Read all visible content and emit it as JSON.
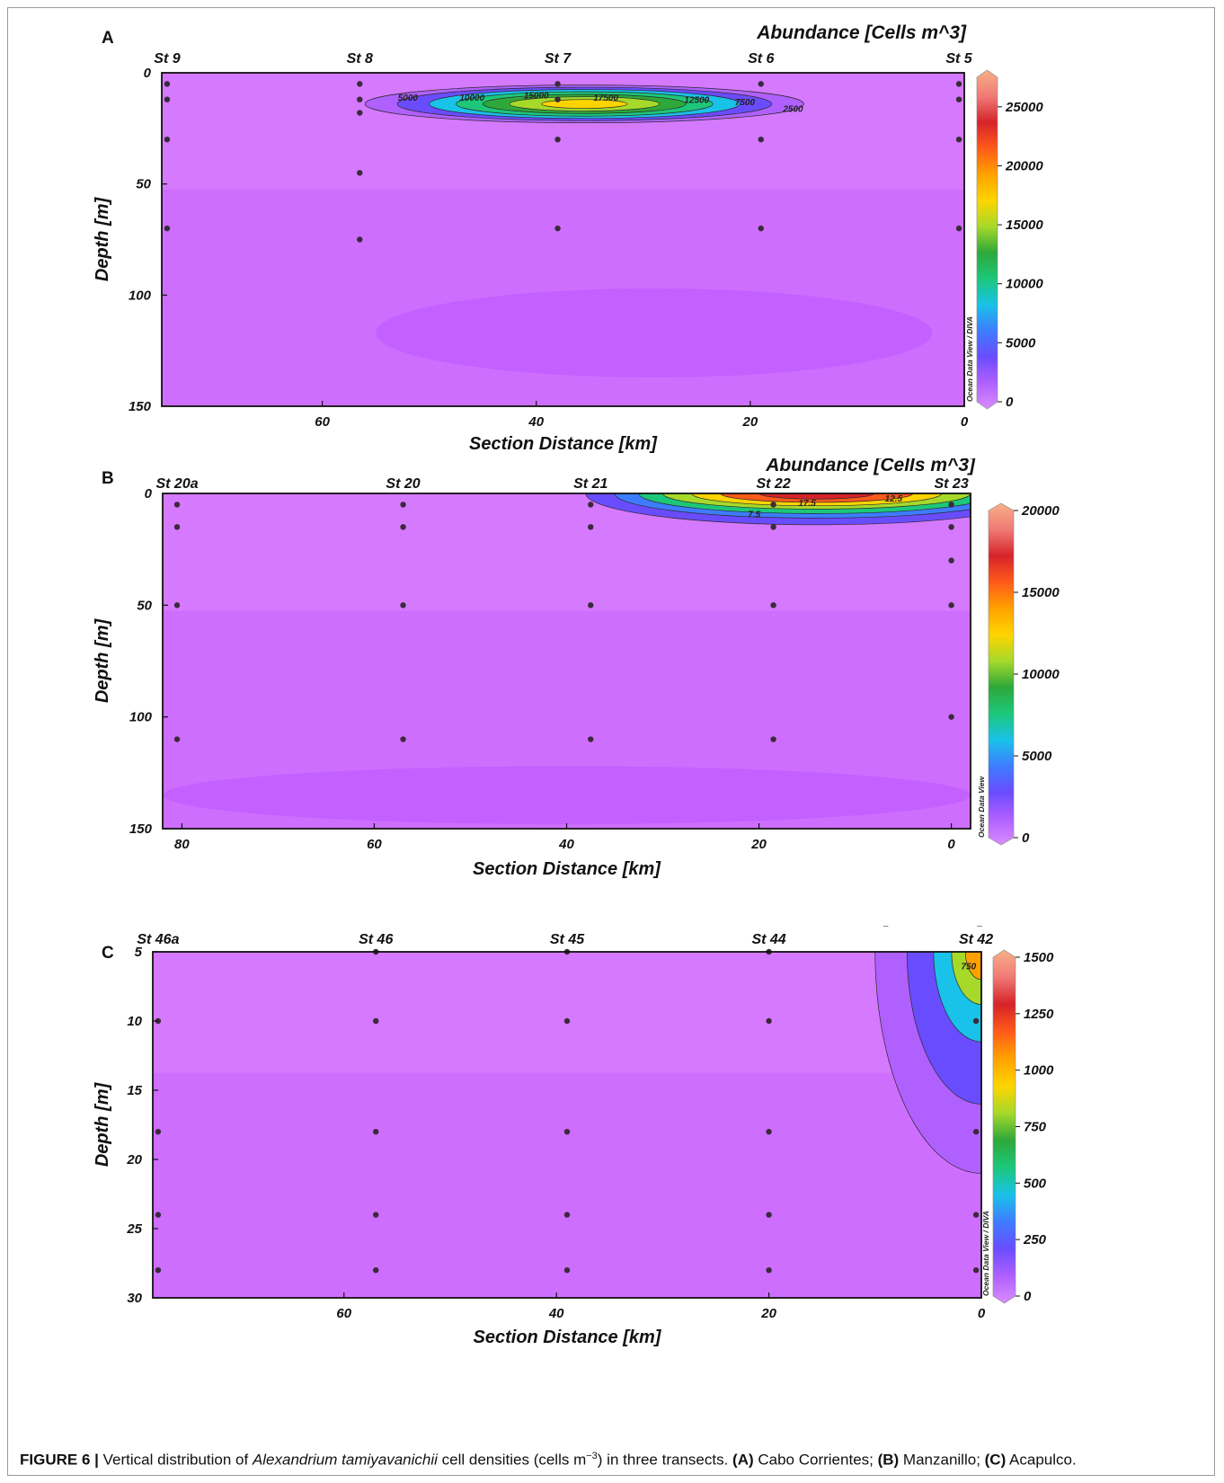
{
  "caption": {
    "label": "FIGURE 6 |",
    "text_before": "Vertical distribution of ",
    "species": "Alexandrium tamiyavanichii",
    "text_unit": " cell densities (cells m",
    "unit_exp": "−3",
    "text_after": ") in three transects. ",
    "a_label": "(A)",
    "a_text": " Cabo Corrientes; ",
    "b_label": "(B)",
    "b_text": " Manzanillo; ",
    "c_label": "(C)",
    "c_text": " Acapulco."
  },
  "colors": {
    "background_purple": "#d579ff",
    "deep_purple": "#c25cff",
    "colormap": [
      "#d98cff",
      "#b060ff",
      "#6a4cff",
      "#3e7cff",
      "#19c2e8",
      "#1cc77a",
      "#2ea83a",
      "#a6d92a",
      "#ffd400",
      "#ffa200",
      "#ff5a1a",
      "#d6232a",
      "#f07a76",
      "#f6b088"
    ]
  },
  "chart_data": [
    {
      "panel": "A",
      "type": "heatmap",
      "title": "Abundance [Cells m^3]",
      "xlabel": "Section Distance [km]",
      "ylabel": "Depth [m]",
      "xlim": [
        75,
        0
      ],
      "ylim": [
        0,
        150
      ],
      "x_ticks": [
        60,
        40,
        20,
        0
      ],
      "y_ticks": [
        0,
        50,
        100,
        150
      ],
      "colorbar_ticks": [
        0,
        5000,
        10000,
        15000,
        20000,
        25000
      ],
      "colorbar_max": 27500,
      "colorbar_credit": "Ocean Data View / DIVA",
      "stations": [
        {
          "name": "St 9",
          "x": 74.5,
          "depths": [
            5,
            12,
            30,
            70
          ]
        },
        {
          "name": "St 8",
          "x": 56.5,
          "depths": [
            5,
            12,
            18,
            45,
            75
          ]
        },
        {
          "name": "St 7",
          "x": 38,
          "depths": [
            5,
            12,
            30,
            70
          ]
        },
        {
          "name": "St 6",
          "x": 19,
          "depths": [
            5,
            30,
            70
          ]
        },
        {
          "name": "St 5",
          "x": 0.5,
          "depths": [
            5,
            12,
            30,
            70
          ]
        }
      ],
      "contours": [
        {
          "level": 2500,
          "cx": 35.5,
          "cy": 14,
          "rx": 20.5,
          "ry": 8.5
        },
        {
          "level": 5000,
          "cx": 35.5,
          "cy": 14,
          "rx": 17.5,
          "ry": 7.5
        },
        {
          "level": 7500,
          "cx": 35.5,
          "cy": 14,
          "rx": 14.5,
          "ry": 6.5
        },
        {
          "level": 10000,
          "cx": 35.5,
          "cy": 14,
          "rx": 12,
          "ry": 5.5
        },
        {
          "level": 12500,
          "cx": 35.5,
          "cy": 14,
          "rx": 9.5,
          "ry": 4.3
        },
        {
          "level": 15000,
          "cx": 35.5,
          "cy": 14,
          "rx": 7,
          "ry": 3.2
        },
        {
          "level": 17500,
          "cx": 35.5,
          "cy": 14,
          "rx": 4,
          "ry": 2
        }
      ],
      "contour_labels": [
        {
          "text": "5000",
          "x": 52,
          "y": 11
        },
        {
          "text": "10000",
          "x": 46,
          "y": 11
        },
        {
          "text": "15000",
          "x": 40,
          "y": 10
        },
        {
          "text": "17500",
          "x": 33.5,
          "y": 11
        },
        {
          "text": "12500",
          "x": 25,
          "y": 12
        },
        {
          "text": "7500",
          "x": 20.5,
          "y": 13
        },
        {
          "text": "2500",
          "x": 16,
          "y": 16
        }
      ],
      "deep_zone": {
        "cx": 29,
        "cy": 117,
        "rx": 26,
        "ry": 20
      }
    },
    {
      "panel": "B",
      "type": "heatmap",
      "title": "Abundance [Cells m^3]",
      "xlabel": "Section Distance [km]",
      "ylabel": "Depth [m]",
      "xlim": [
        82,
        -2
      ],
      "ylim": [
        0,
        150
      ],
      "x_ticks": [
        80,
        60,
        40,
        20,
        0
      ],
      "y_ticks": [
        0,
        50,
        100,
        150
      ],
      "colorbar_ticks": [
        0,
        5000,
        10000,
        15000,
        20000
      ],
      "colorbar_max": 20000,
      "colorbar_credit": "Ocean Data View",
      "stations": [
        {
          "name": "St 20a",
          "x": 80.5,
          "depths": [
            5,
            15,
            50,
            110
          ]
        },
        {
          "name": "St 20",
          "x": 57,
          "depths": [
            5,
            15,
            50,
            110
          ]
        },
        {
          "name": "St 21",
          "x": 37.5,
          "depths": [
            5,
            15,
            50,
            110
          ]
        },
        {
          "name": "St 22",
          "x": 18.5,
          "depths": [
            5,
            15,
            50,
            110
          ]
        },
        {
          "name": "St 23",
          "x": 0,
          "depths": [
            5,
            15,
            30,
            50,
            100
          ]
        }
      ],
      "contours": [
        {
          "level": 2500,
          "cx": 14,
          "cy": 0,
          "rx": 24,
          "ry": 14
        },
        {
          "level": 5000,
          "cx": 14,
          "cy": 0,
          "rx": 21,
          "ry": 11
        },
        {
          "level": 7500,
          "cx": 14,
          "cy": 0,
          "rx": 18.5,
          "ry": 9
        },
        {
          "level": 10000,
          "cx": 14,
          "cy": 0,
          "rx": 16,
          "ry": 7
        },
        {
          "level": 12500,
          "cx": 14,
          "cy": 0,
          "rx": 13,
          "ry": 5.5
        },
        {
          "level": 15000,
          "cx": 14,
          "cy": 0,
          "rx": 10,
          "ry": 4
        },
        {
          "level": 17500,
          "cx": 14,
          "cy": 0,
          "rx": 6,
          "ry": 2.5
        }
      ],
      "contour_labels": [
        {
          "text": "17.5",
          "x": 15,
          "y": 4
        },
        {
          "text": "12.5",
          "x": 6,
          "y": 2
        },
        {
          "text": "7.5",
          "x": 20.5,
          "y": 9
        }
      ],
      "deep_zone": {
        "cx": 40,
        "cy": 135,
        "rx": 42,
        "ry": 13
      }
    },
    {
      "panel": "C",
      "type": "heatmap",
      "title": "Abundance [Cells m^3]",
      "xlabel": "Section Distance [km]",
      "ylabel": "Depth [m]",
      "xlim": [
        78,
        0
      ],
      "ylim": [
        5,
        30
      ],
      "x_ticks": [
        60,
        40,
        20,
        0
      ],
      "y_ticks": [
        5,
        10,
        15,
        20,
        25,
        30
      ],
      "colorbar_ticks": [
        0,
        250,
        500,
        750,
        1000,
        1250,
        1500
      ],
      "colorbar_max": 1500,
      "colorbar_credit": "Ocean Data View / DIVA",
      "stations": [
        {
          "name": "St 46a",
          "x": 77.5,
          "depths": [
            10,
            18,
            24,
            28
          ]
        },
        {
          "name": "St 46",
          "x": 57,
          "depths": [
            5,
            10,
            18,
            24,
            28
          ]
        },
        {
          "name": "St 45",
          "x": 39,
          "depths": [
            5,
            10,
            18,
            24,
            28
          ]
        },
        {
          "name": "St 44",
          "x": 20,
          "depths": [
            5,
            10,
            18,
            24,
            28
          ]
        },
        {
          "name": "St 42",
          "x": 0.5,
          "depths": [
            10,
            18,
            24,
            28
          ]
        }
      ],
      "contours": [
        {
          "level": 100,
          "cx": 0,
          "cy": 5,
          "rx": 10,
          "ry": 16
        },
        {
          "level": 250,
          "cx": 0,
          "cy": 5,
          "rx": 7,
          "ry": 11
        },
        {
          "level": 500,
          "cx": 0,
          "cy": 5,
          "rx": 4.5,
          "ry": 6.5
        },
        {
          "level": 750,
          "cx": 0,
          "cy": 5,
          "rx": 2.8,
          "ry": 3.8
        },
        {
          "level": 1000,
          "cx": 0,
          "cy": 5,
          "rx": 1.5,
          "ry": 2
        }
      ],
      "contour_labels": [
        {
          "text": "750",
          "x": 1.2,
          "y": 6
        }
      ],
      "deep_zone": null
    }
  ]
}
